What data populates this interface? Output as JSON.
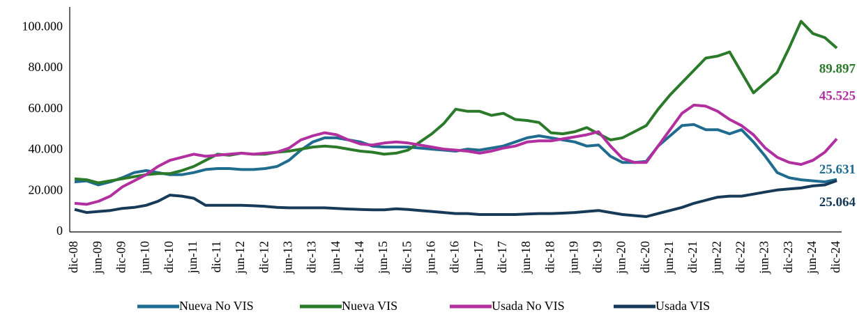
{
  "chart_data": {
    "type": "line",
    "categories": [
      "dic-08",
      null,
      "jun-09",
      null,
      "dic-09",
      null,
      "jun-10",
      null,
      "dic-10",
      null,
      "jun-11",
      null,
      "dic-11",
      null,
      "jun-12",
      null,
      "dic-12",
      null,
      "jun-13",
      null,
      "dic-13",
      null,
      "jun-14",
      null,
      "dic-14",
      null,
      "jun-15",
      null,
      "dic-15",
      null,
      "jun-16",
      null,
      "dic-16",
      null,
      "jun-17",
      null,
      "dic-17",
      null,
      "jun-18",
      null,
      "dic-18",
      null,
      "jun-19",
      null,
      "dic-19",
      null,
      "jun-20",
      null,
      "dic-20",
      null,
      "jun-21",
      null,
      "dic-21",
      null,
      "jun-22",
      null,
      "dic-22",
      null,
      "jun-23",
      null,
      "dic-23",
      null,
      "jun-24",
      null,
      "dic-24"
    ],
    "ylim": [
      0,
      110000
    ],
    "yticks": [
      0,
      {
        "value": 20000,
        "label": "20.000"
      },
      {
        "value": 40000,
        "label": "40.000"
      },
      {
        "value": 60000,
        "label": "60.000"
      },
      {
        "value": 80000,
        "label": "80.000"
      },
      {
        "value": 100000,
        "label": "100.000"
      }
    ],
    "grid": false,
    "legend": "bottom",
    "series": [
      {
        "name": "Nueva No VIS",
        "color": "#1f6c8f",
        "values": [
          24500,
          25000,
          23000,
          24500,
          26500,
          29000,
          30000,
          29000,
          28000,
          28000,
          29000,
          30500,
          31000,
          31000,
          30500,
          30500,
          31000,
          32000,
          35000,
          40000,
          44000,
          46000,
          46000,
          45000,
          44000,
          42000,
          41500,
          41500,
          41500,
          41000,
          40500,
          40000,
          39500,
          40500,
          40000,
          41000,
          42000,
          44000,
          46000,
          47000,
          46000,
          45000,
          44000,
          42000,
          42500,
          37000,
          34000,
          34000,
          34500,
          42000,
          47000,
          52000,
          52500,
          50000,
          50000,
          48000,
          50000,
          44000,
          37000,
          29000,
          26500,
          25500,
          25000,
          24500,
          25631
        ],
        "value_labels": [
          null,
          null,
          null,
          null,
          null,
          null,
          null,
          null,
          null,
          null,
          null,
          null,
          null,
          null,
          null,
          null,
          null,
          null,
          null,
          null,
          null,
          null,
          null,
          null,
          null,
          null,
          null,
          null,
          null,
          null,
          null,
          null,
          null,
          null,
          null,
          null,
          null,
          null,
          null,
          null,
          null,
          null,
          null,
          null,
          null,
          null,
          null,
          null,
          null,
          null,
          null,
          null,
          null,
          null,
          null,
          null,
          null,
          null,
          null,
          null,
          null,
          null,
          null,
          null,
          "25.631"
        ]
      },
      {
        "name": "Nueva VIS",
        "color": "#2a7a2a",
        "values": [
          26000,
          25500,
          24000,
          25000,
          26000,
          27000,
          28000,
          28500,
          28500,
          30000,
          32000,
          35000,
          38000,
          37500,
          38500,
          38000,
          38000,
          39000,
          39500,
          40500,
          41500,
          42000,
          41500,
          40500,
          39500,
          39000,
          38000,
          38500,
          40000,
          44000,
          48000,
          53000,
          60000,
          59000,
          59000,
          57000,
          58000,
          55000,
          54500,
          53500,
          48500,
          48000,
          49000,
          51000,
          48000,
          45000,
          46000,
          49000,
          52000,
          60000,
          67000,
          73000,
          79000,
          85000,
          86000,
          88000,
          78000,
          68000,
          73000,
          78000,
          90000,
          103000,
          97000,
          95000,
          89897
        ],
        "value_labels": [
          null,
          null,
          null,
          null,
          null,
          null,
          null,
          null,
          null,
          null,
          null,
          null,
          null,
          null,
          null,
          null,
          null,
          null,
          null,
          null,
          null,
          null,
          null,
          null,
          null,
          null,
          null,
          null,
          null,
          null,
          null,
          null,
          null,
          null,
          null,
          null,
          null,
          null,
          null,
          null,
          null,
          null,
          null,
          null,
          null,
          null,
          null,
          null,
          null,
          null,
          null,
          null,
          null,
          null,
          null,
          null,
          null,
          null,
          null,
          null,
          null,
          null,
          null,
          null,
          "89.897"
        ]
      },
      {
        "name": "Usada No VIS",
        "color": "#b12f9f",
        "values": [
          14000,
          13500,
          15000,
          17500,
          22000,
          25000,
          28000,
          32000,
          35000,
          36500,
          38000,
          37000,
          37500,
          38000,
          38500,
          38000,
          38500,
          39000,
          41000,
          45000,
          47000,
          48500,
          47500,
          45000,
          43000,
          42500,
          43500,
          44000,
          43500,
          42500,
          41500,
          40500,
          40000,
          39500,
          38500,
          39500,
          41000,
          42000,
          44000,
          44500,
          44500,
          45500,
          46500,
          47500,
          49000,
          42000,
          36000,
          34000,
          34000,
          42000,
          50000,
          58000,
          62000,
          61500,
          59000,
          55000,
          52000,
          47500,
          41000,
          36500,
          34000,
          33000,
          35000,
          39000,
          45525
        ],
        "value_labels": [
          null,
          null,
          null,
          null,
          null,
          null,
          null,
          null,
          null,
          null,
          null,
          null,
          null,
          null,
          null,
          null,
          null,
          null,
          null,
          null,
          null,
          null,
          null,
          null,
          null,
          null,
          null,
          null,
          null,
          null,
          null,
          null,
          null,
          null,
          null,
          null,
          null,
          null,
          null,
          null,
          null,
          null,
          null,
          null,
          null,
          null,
          null,
          null,
          null,
          null,
          null,
          null,
          null,
          null,
          null,
          null,
          null,
          null,
          null,
          null,
          null,
          null,
          null,
          null,
          "45.525"
        ]
      },
      {
        "name": "Usada VIS",
        "color": "#163a57",
        "values": [
          11000,
          9500,
          10000,
          10500,
          11500,
          12000,
          13000,
          15000,
          18000,
          17500,
          16500,
          13000,
          13000,
          13000,
          13000,
          12800,
          12500,
          12000,
          11800,
          11800,
          11800,
          11800,
          11500,
          11200,
          11000,
          10800,
          10800,
          11300,
          11000,
          10500,
          10000,
          9500,
          9000,
          9000,
          8500,
          8500,
          8500,
          8500,
          8800,
          9000,
          9000,
          9200,
          9500,
          10000,
          10500,
          9500,
          8500,
          8000,
          7500,
          9000,
          10500,
          12000,
          14000,
          15500,
          17000,
          17500,
          17500,
          18500,
          19500,
          20500,
          21000,
          21500,
          22500,
          23000,
          25064
        ],
        "value_labels": [
          null,
          null,
          null,
          null,
          null,
          null,
          null,
          null,
          null,
          null,
          null,
          null,
          null,
          null,
          null,
          null,
          null,
          null,
          null,
          null,
          null,
          null,
          null,
          null,
          null,
          null,
          null,
          null,
          null,
          null,
          null,
          null,
          null,
          null,
          null,
          null,
          null,
          null,
          null,
          null,
          null,
          null,
          null,
          null,
          null,
          null,
          null,
          null,
          null,
          null,
          null,
          null,
          null,
          null,
          null,
          null,
          null,
          null,
          null,
          null,
          null,
          null,
          null,
          null,
          "25.064"
        ]
      }
    ]
  }
}
